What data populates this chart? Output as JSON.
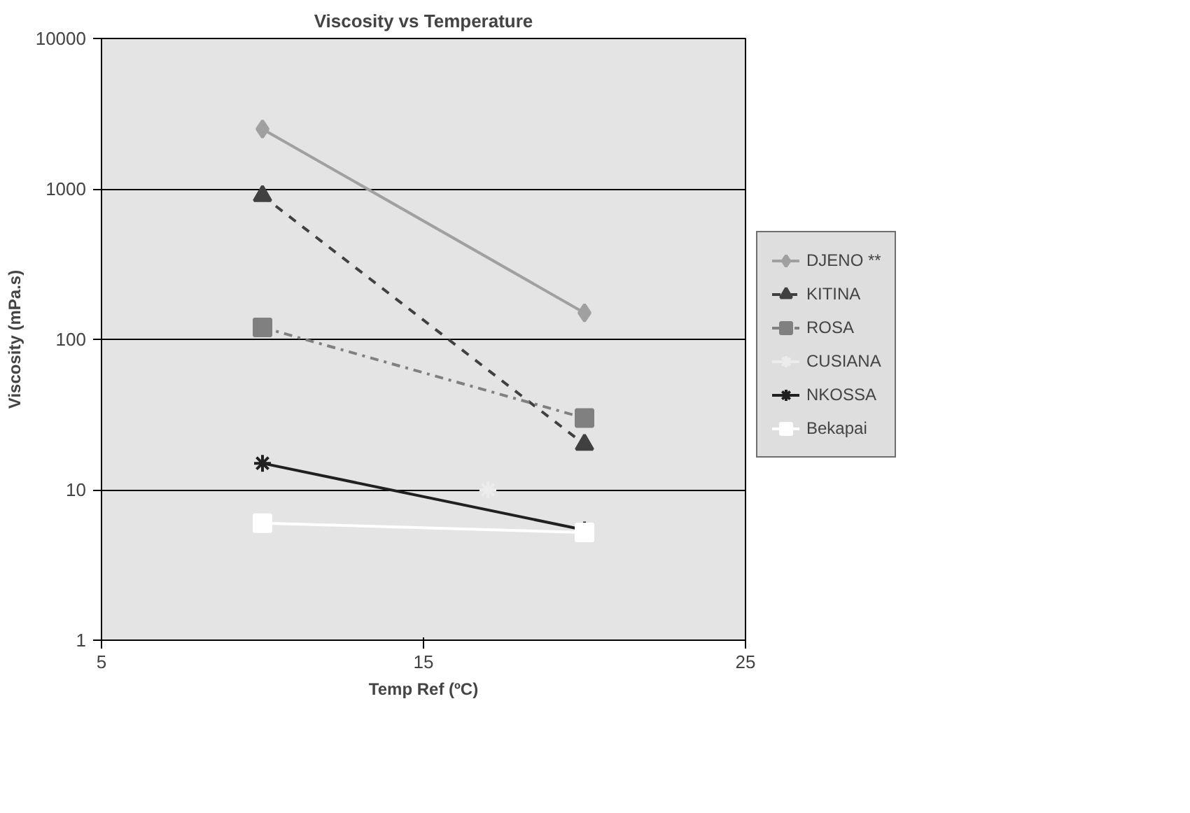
{
  "chart_data": {
    "type": "line",
    "title": "Viscosity vs Temperature",
    "xlabel": "Temp Ref (ºC)",
    "ylabel": "Viscosity (mPa.s)",
    "x": [
      10,
      20
    ],
    "xlim": [
      5,
      25
    ],
    "xticks": [
      5,
      15,
      25
    ],
    "ylim": [
      1,
      10000
    ],
    "yticks": [
      1,
      10,
      100,
      1000,
      10000
    ],
    "log": "y",
    "grid": "y",
    "legend": "right",
    "series": [
      {
        "name": "DJENO **",
        "color": "#a0a0a0",
        "values": [
          2500,
          150
        ],
        "marker": "diamond",
        "line_style": "solid"
      },
      {
        "name": "KITINA",
        "color": "#404040",
        "values": [
          900,
          20
        ],
        "marker": "triangle",
        "line_style": "dashed"
      },
      {
        "name": "ROSA",
        "color": "#808080",
        "values": [
          120,
          30
        ],
        "marker": "square",
        "line_style": "dashdot"
      },
      {
        "name": "CUSIANA",
        "color": "#ececec",
        "x": [
          17
        ],
        "values": [
          10
        ],
        "marker": "cross",
        "line_style": "solid"
      },
      {
        "name": "NKOSSA",
        "color": "#202020",
        "values": [
          15,
          5.4
        ],
        "marker": "cross",
        "line_style": "solid"
      },
      {
        "name": "Bekapai",
        "color": "#ffffff",
        "values": [
          6,
          5.2
        ],
        "marker": "square",
        "line_style": "solid"
      }
    ]
  }
}
